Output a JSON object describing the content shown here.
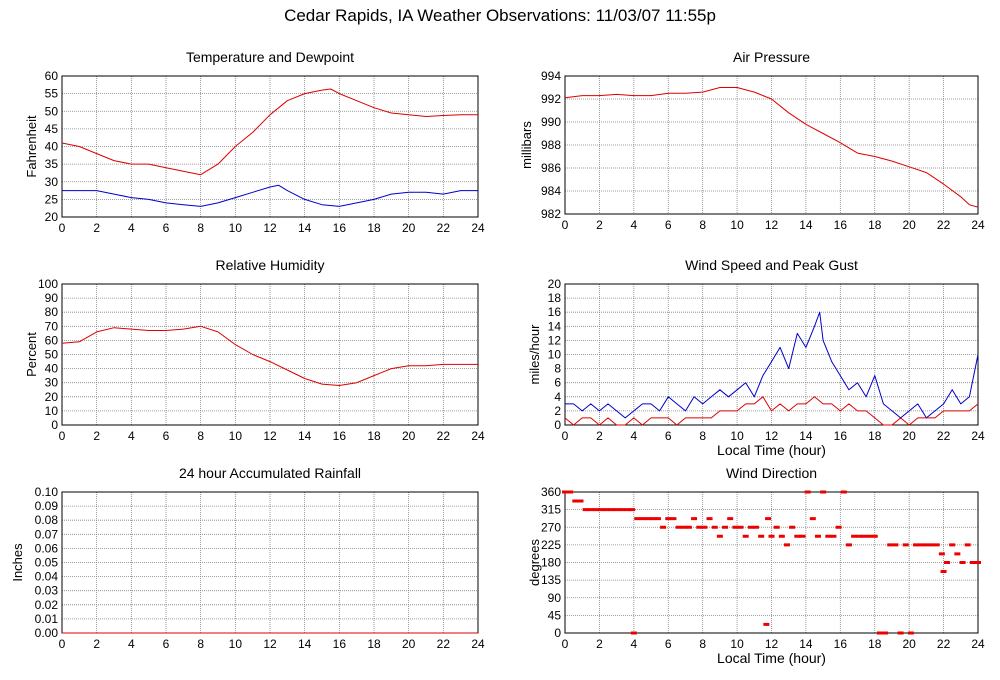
{
  "page": {
    "title": "Cedar Rapids, IA Weather Observations: 11/03/07 11:55p"
  },
  "chart_data": [
    {
      "id": "temp",
      "type": "line",
      "title": "Temperature and Dewpoint",
      "xlabel": "",
      "ylabel": "Fahrenheit",
      "xlim": [
        0,
        24
      ],
      "ylim": [
        20,
        60
      ],
      "xticks": [
        0,
        2,
        4,
        6,
        8,
        10,
        12,
        14,
        16,
        18,
        20,
        22,
        24
      ],
      "yticks": [
        20,
        25,
        30,
        35,
        40,
        45,
        50,
        55,
        60
      ],
      "grid": true,
      "series": [
        {
          "color": "#dd0000",
          "x": [
            0,
            1,
            2,
            3,
            4,
            5,
            6,
            7,
            8,
            9,
            10,
            11,
            12,
            13,
            14,
            15,
            15.5,
            16,
            17,
            18,
            19,
            20,
            21,
            22,
            23,
            24
          ],
          "y": [
            41,
            40,
            38,
            36,
            35,
            35,
            34,
            33,
            32,
            35,
            40,
            44,
            49,
            53,
            55,
            56,
            56.3,
            55,
            53,
            51,
            49.5,
            49,
            48.5,
            48.8,
            49,
            49
          ]
        },
        {
          "color": "#0000cc",
          "x": [
            0,
            1,
            2,
            3,
            4,
            5,
            6,
            7,
            8,
            9,
            10,
            11,
            12,
            12.5,
            13,
            14,
            15,
            16,
            17,
            18,
            19,
            20,
            21,
            22,
            23,
            24
          ],
          "y": [
            27.5,
            27.5,
            27.5,
            26.5,
            25.5,
            25,
            24,
            23.5,
            23,
            24,
            25.5,
            27,
            28.5,
            29,
            27.5,
            25,
            23.5,
            23,
            24,
            25,
            26.5,
            27,
            27,
            26.5,
            27.5,
            27.5
          ]
        }
      ]
    },
    {
      "id": "pressure",
      "type": "line",
      "title": "Air Pressure",
      "xlabel": "",
      "ylabel": "millibars",
      "xlim": [
        0,
        24
      ],
      "ylim": [
        982,
        994
      ],
      "xticks": [
        0,
        2,
        4,
        6,
        8,
        10,
        12,
        14,
        16,
        18,
        20,
        22,
        24
      ],
      "yticks": [
        982,
        984,
        986,
        988,
        990,
        992,
        994
      ],
      "ytick_labels": [
        "982",
        "984",
        "986",
        "988",
        "990",
        "992",
        "994"
      ],
      "grid": true,
      "series": [
        {
          "color": "#dd0000",
          "x": [
            0,
            1,
            2,
            3,
            4,
            5,
            6,
            7,
            8,
            9,
            10,
            11,
            12,
            13,
            14,
            15,
            16,
            17,
            18,
            19,
            20,
            21,
            22,
            23,
            23.5,
            24
          ],
          "y": [
            992.1,
            992.3,
            992.3,
            992.4,
            992.3,
            992.3,
            992.5,
            992.5,
            992.6,
            993,
            993,
            992.6,
            992,
            990.8,
            989.8,
            989,
            988.2,
            987.3,
            987,
            986.6,
            986.1,
            985.6,
            984.6,
            983.5,
            982.8,
            982.6
          ]
        }
      ]
    },
    {
      "id": "humidity",
      "type": "line",
      "title": "Relative Humidity",
      "xlabel": "",
      "ylabel": "Percent",
      "xlim": [
        0,
        24
      ],
      "ylim": [
        0,
        100
      ],
      "xticks": [
        0,
        2,
        4,
        6,
        8,
        10,
        12,
        14,
        16,
        18,
        20,
        22,
        24
      ],
      "yticks": [
        0,
        10,
        20,
        30,
        40,
        50,
        60,
        70,
        80,
        90,
        100
      ],
      "grid": true,
      "series": [
        {
          "color": "#dd0000",
          "x": [
            0,
            1,
            2,
            3,
            4,
            5,
            6,
            7,
            8,
            9,
            10,
            11,
            12,
            13,
            14,
            15,
            16,
            17,
            18,
            19,
            20,
            21,
            22,
            23,
            24
          ],
          "y": [
            58,
            59,
            66,
            69,
            68,
            67,
            67,
            68,
            70,
            66,
            57,
            50,
            45,
            39,
            33,
            29,
            28,
            30,
            35,
            40,
            42,
            42,
            43,
            43,
            43
          ]
        }
      ]
    },
    {
      "id": "wind",
      "type": "line",
      "title": "Wind Speed and Peak Gust",
      "xlabel": "Local Time (hour)",
      "ylabel": "miles/hour",
      "xlim": [
        0,
        24
      ],
      "ylim": [
        0,
        20
      ],
      "xticks": [
        0,
        2,
        4,
        6,
        8,
        10,
        12,
        14,
        16,
        18,
        20,
        22,
        24
      ],
      "yticks": [
        0,
        2,
        4,
        6,
        8,
        10,
        12,
        14,
        16,
        18,
        20
      ],
      "grid": true,
      "series": [
        {
          "color": "#0000cc",
          "x": [
            0,
            0.5,
            1,
            1.5,
            2,
            2.5,
            3,
            3.5,
            4,
            4.5,
            5,
            5.5,
            6,
            6.5,
            7,
            7.5,
            8,
            8.5,
            9,
            9.5,
            10,
            10.5,
            11,
            11.5,
            12,
            12.5,
            13,
            13.5,
            14,
            14.5,
            14.8,
            15,
            15.5,
            16,
            16.5,
            17,
            17.5,
            18,
            18.5,
            19,
            19.5,
            20,
            20.5,
            21,
            21.5,
            22,
            22.5,
            23,
            23.5,
            24
          ],
          "y": [
            3,
            3,
            2,
            3,
            2,
            3,
            2,
            1,
            2,
            3,
            3,
            2,
            4,
            3,
            2,
            4,
            3,
            4,
            5,
            4,
            5,
            6,
            4,
            7,
            9,
            11,
            8,
            13,
            11,
            14,
            16,
            12,
            9,
            7,
            5,
            6,
            4,
            7,
            3,
            2,
            1,
            2,
            3,
            1,
            2,
            3,
            5,
            3,
            4,
            10
          ]
        },
        {
          "color": "#dd0000",
          "x": [
            0,
            0.5,
            1,
            1.5,
            2,
            2.5,
            3,
            3.5,
            4,
            4.5,
            5,
            5.5,
            6,
            6.5,
            7,
            7.5,
            8,
            8.5,
            9,
            9.5,
            10,
            10.5,
            11,
            11.5,
            12,
            12.5,
            13,
            13.5,
            14,
            14.5,
            15,
            15.5,
            16,
            16.5,
            17,
            17.5,
            18,
            18.5,
            19,
            19.5,
            20,
            20.5,
            21,
            21.5,
            22,
            22.5,
            23,
            23.5,
            24
          ],
          "y": [
            1,
            0,
            1,
            1,
            0,
            1,
            0,
            0,
            1,
            0,
            1,
            1,
            1,
            0,
            1,
            1,
            1,
            1,
            2,
            2,
            2,
            3,
            3,
            4,
            2,
            3,
            2,
            3,
            3,
            4,
            3,
            3,
            2,
            3,
            2,
            2,
            1,
            0,
            0,
            1,
            0,
            1,
            1,
            1,
            2,
            2,
            2,
            2,
            3
          ]
        }
      ]
    },
    {
      "id": "rain",
      "type": "line",
      "title": "24 hour Accumulated Rainfall",
      "xlabel": "",
      "ylabel": "Inches",
      "xlim": [
        0,
        24
      ],
      "ylim": [
        0,
        0.1
      ],
      "xticks": [
        0,
        2,
        4,
        6,
        8,
        10,
        12,
        14,
        16,
        18,
        20,
        22,
        24
      ],
      "yticks": [
        0,
        0.01,
        0.02,
        0.03,
        0.04,
        0.05,
        0.06,
        0.07,
        0.08,
        0.09,
        0.1
      ],
      "ytick_labels": [
        "0.00",
        "0.01",
        "0.02",
        "0.03",
        "0.04",
        "0.05",
        "0.06",
        "0.07",
        "0.08",
        "0.09",
        "0.10"
      ],
      "grid": true,
      "series": [
        {
          "color": "#dd0000",
          "x": [
            0,
            24
          ],
          "y": [
            0,
            0
          ]
        }
      ]
    },
    {
      "id": "direction",
      "type": "scatter",
      "title": "Wind Direction",
      "xlabel": "Local Time (hour)",
      "ylabel": "degrees",
      "xlim": [
        0,
        24
      ],
      "ylim": [
        0,
        360
      ],
      "xticks": [
        0,
        2,
        4,
        6,
        8,
        10,
        12,
        14,
        16,
        18,
        20,
        22,
        24
      ],
      "yticks": [
        0,
        45,
        90,
        135,
        180,
        225,
        270,
        315,
        360
      ],
      "grid": true,
      "series": [
        {
          "color": "#ee0000",
          "x": [
            0,
            0.3,
            0.6,
            0.9,
            1.2,
            1.5,
            1.8,
            2.1,
            2.4,
            2.7,
            3.0,
            3.3,
            3.6,
            3.9,
            4.0,
            4.2,
            4.5,
            4.8,
            5.1,
            5.4,
            5.7,
            6.0,
            6.3,
            6.6,
            6.9,
            7.2,
            7.5,
            7.8,
            8.1,
            8.4,
            8.7,
            9.0,
            9.3,
            9.6,
            9.9,
            10.2,
            10.5,
            10.8,
            11.1,
            11.4,
            11.7,
            11.8,
            12.0,
            12.3,
            12.6,
            12.9,
            13.2,
            13.5,
            13.8,
            14.1,
            14.4,
            14.7,
            15.0,
            15.3,
            15.6,
            15.9,
            16.2,
            16.5,
            16.8,
            17.1,
            17.4,
            17.7,
            18.0,
            18.3,
            18.6,
            18.9,
            19.2,
            19.5,
            19.8,
            20.1,
            20.4,
            20.7,
            21.0,
            21.3,
            21.6,
            21.9,
            22.0,
            22.2,
            22.5,
            22.8,
            23.1,
            23.4,
            23.7,
            24.0
          ],
          "y": [
            360,
            360,
            337,
            337,
            315,
            315,
            315,
            315,
            315,
            315,
            315,
            315,
            315,
            315,
            0,
            292,
            292,
            292,
            292,
            292,
            270,
            292,
            292,
            270,
            270,
            270,
            292,
            270,
            270,
            292,
            270,
            247,
            270,
            292,
            270,
            270,
            247,
            270,
            270,
            247,
            22,
            292,
            247,
            270,
            247,
            225,
            270,
            247,
            247,
            360,
            292,
            247,
            360,
            247,
            247,
            270,
            360,
            225,
            247,
            247,
            247,
            247,
            247,
            0,
            0,
            225,
            225,
            0,
            225,
            0,
            225,
            225,
            225,
            225,
            225,
            202,
            157,
            180,
            225,
            202,
            180,
            225,
            180,
            180
          ]
        }
      ]
    }
  ]
}
